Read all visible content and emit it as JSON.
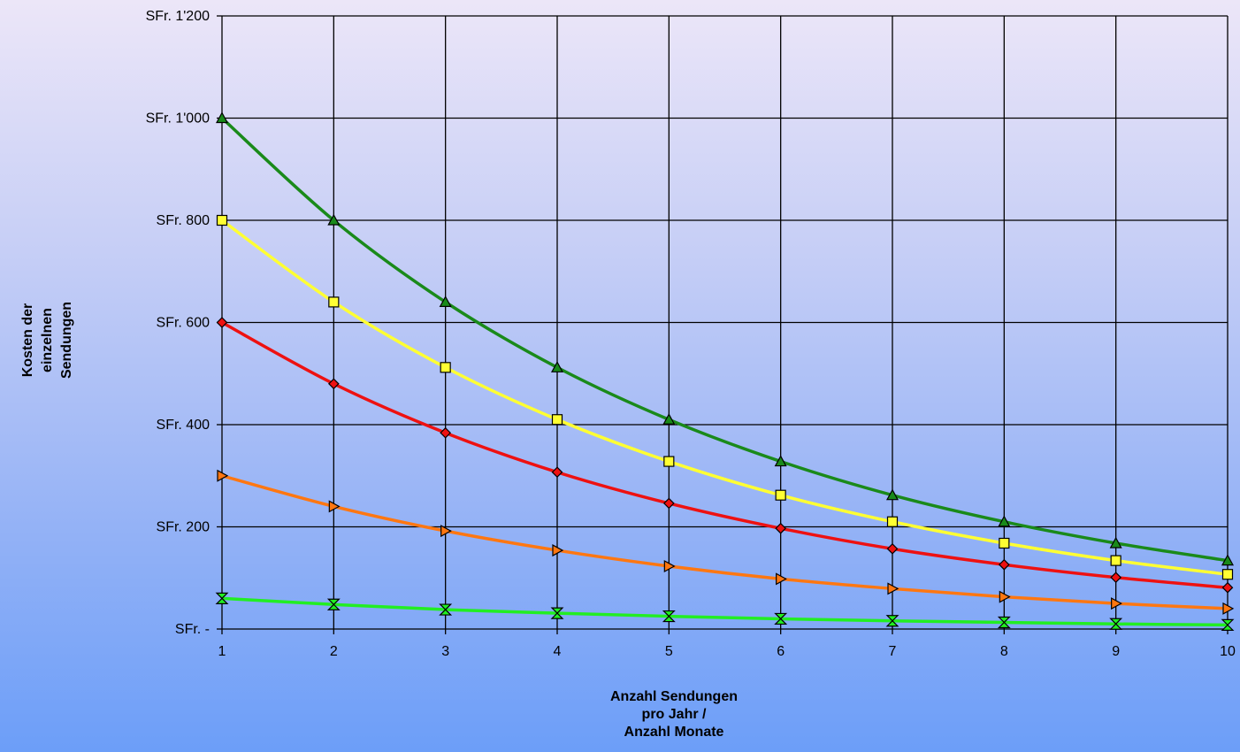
{
  "chart_data": {
    "type": "line",
    "title": "",
    "xlabel": [
      "Anzahl Sendungen",
      "pro Jahr /",
      "Anzahl Monate"
    ],
    "ylabel": [
      "Kosten der",
      "einzelnen",
      "Sendungen"
    ],
    "x": [
      1,
      2,
      3,
      4,
      5,
      6,
      7,
      8,
      9,
      10
    ],
    "xticks": [
      "1",
      "2",
      "3",
      "4",
      "5",
      "6",
      "7",
      "8",
      "9",
      "10"
    ],
    "ylim": [
      0,
      1200
    ],
    "yticks": [
      {
        "value": 0,
        "label": "SFr. -"
      },
      {
        "value": 200,
        "label": "SFr. 200"
      },
      {
        "value": 400,
        "label": "SFr. 400"
      },
      {
        "value": 600,
        "label": "SFr. 600"
      },
      {
        "value": 800,
        "label": "SFr. 800"
      },
      {
        "value": 1000,
        "label": "SFr. 1'000"
      },
      {
        "value": 1200,
        "label": "SFr. 1'200"
      }
    ],
    "grid": true,
    "legend": "none",
    "series": [
      {
        "color": "#1a8a1a",
        "marker": "triangle-up",
        "values": [
          1000,
          800,
          640,
          512,
          410,
          328,
          262,
          210,
          168,
          134
        ]
      },
      {
        "color": "#ffff33",
        "marker": "square",
        "values": [
          800,
          640,
          512,
          410,
          328,
          262,
          210,
          168,
          134,
          107
        ]
      },
      {
        "color": "#ee1111",
        "marker": "diamond",
        "values": [
          600,
          480,
          384,
          307,
          246,
          197,
          157,
          126,
          101,
          81
        ]
      },
      {
        "color": "#ff7711",
        "marker": "triangle-right",
        "values": [
          300,
          240,
          192,
          154,
          123,
          98,
          79,
          63,
          50,
          40
        ]
      },
      {
        "color": "#22ee22",
        "marker": "hourglass",
        "values": [
          60,
          48,
          38,
          31,
          25,
          20,
          16,
          13,
          10,
          8
        ]
      }
    ]
  }
}
